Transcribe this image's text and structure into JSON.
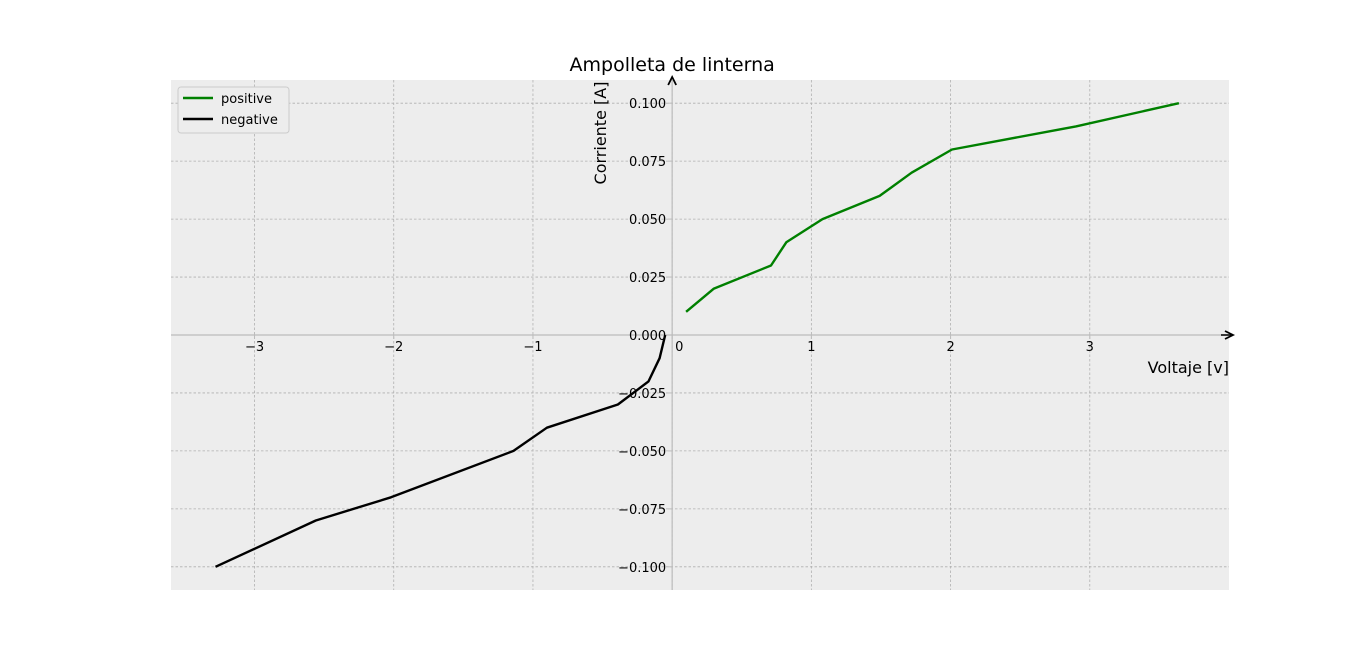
{
  "chart_data": {
    "type": "line",
    "title": "Ampolleta de linterna",
    "xlabel": "Voltaje [v]",
    "ylabel": "Corriente [A]",
    "xlim": [
      -3.6,
      4.0
    ],
    "ylim": [
      -0.11,
      0.11
    ],
    "xticks": [
      -3,
      -2,
      -1,
      0,
      1,
      2,
      3
    ],
    "yticks": [
      -0.1,
      -0.075,
      -0.05,
      -0.025,
      0.0,
      0.025,
      0.05,
      0.075,
      0.1
    ],
    "xtick_labels": [
      "−3",
      "−2",
      "−1",
      "0",
      "1",
      "2",
      "3"
    ],
    "ytick_labels": [
      "−0.100",
      "−0.075",
      "−0.050",
      "−0.025",
      "0.000",
      "0.025",
      "0.050",
      "0.075",
      "0.100"
    ],
    "grid": true,
    "legend_position": "top-left",
    "background": "#ededed",
    "series": [
      {
        "name": "positive",
        "color": "#008000",
        "x": [
          0.1,
          0.3,
          0.71,
          0.82,
          1.08,
          1.49,
          1.72,
          2.01,
          2.9,
          3.64
        ],
        "y": [
          0.01,
          0.02,
          0.03,
          0.04,
          0.05,
          0.06,
          0.07,
          0.08,
          0.09,
          0.1
        ]
      },
      {
        "name": "negative",
        "color": "#000000",
        "x": [
          -0.05,
          -0.09,
          -0.17,
          -0.39,
          -0.9,
          -1.14,
          -2.02,
          -2.56,
          -3.28
        ],
        "y": [
          0.0,
          -0.01,
          -0.02,
          -0.03,
          -0.04,
          -0.05,
          -0.07,
          -0.08,
          -0.1
        ]
      }
    ]
  }
}
